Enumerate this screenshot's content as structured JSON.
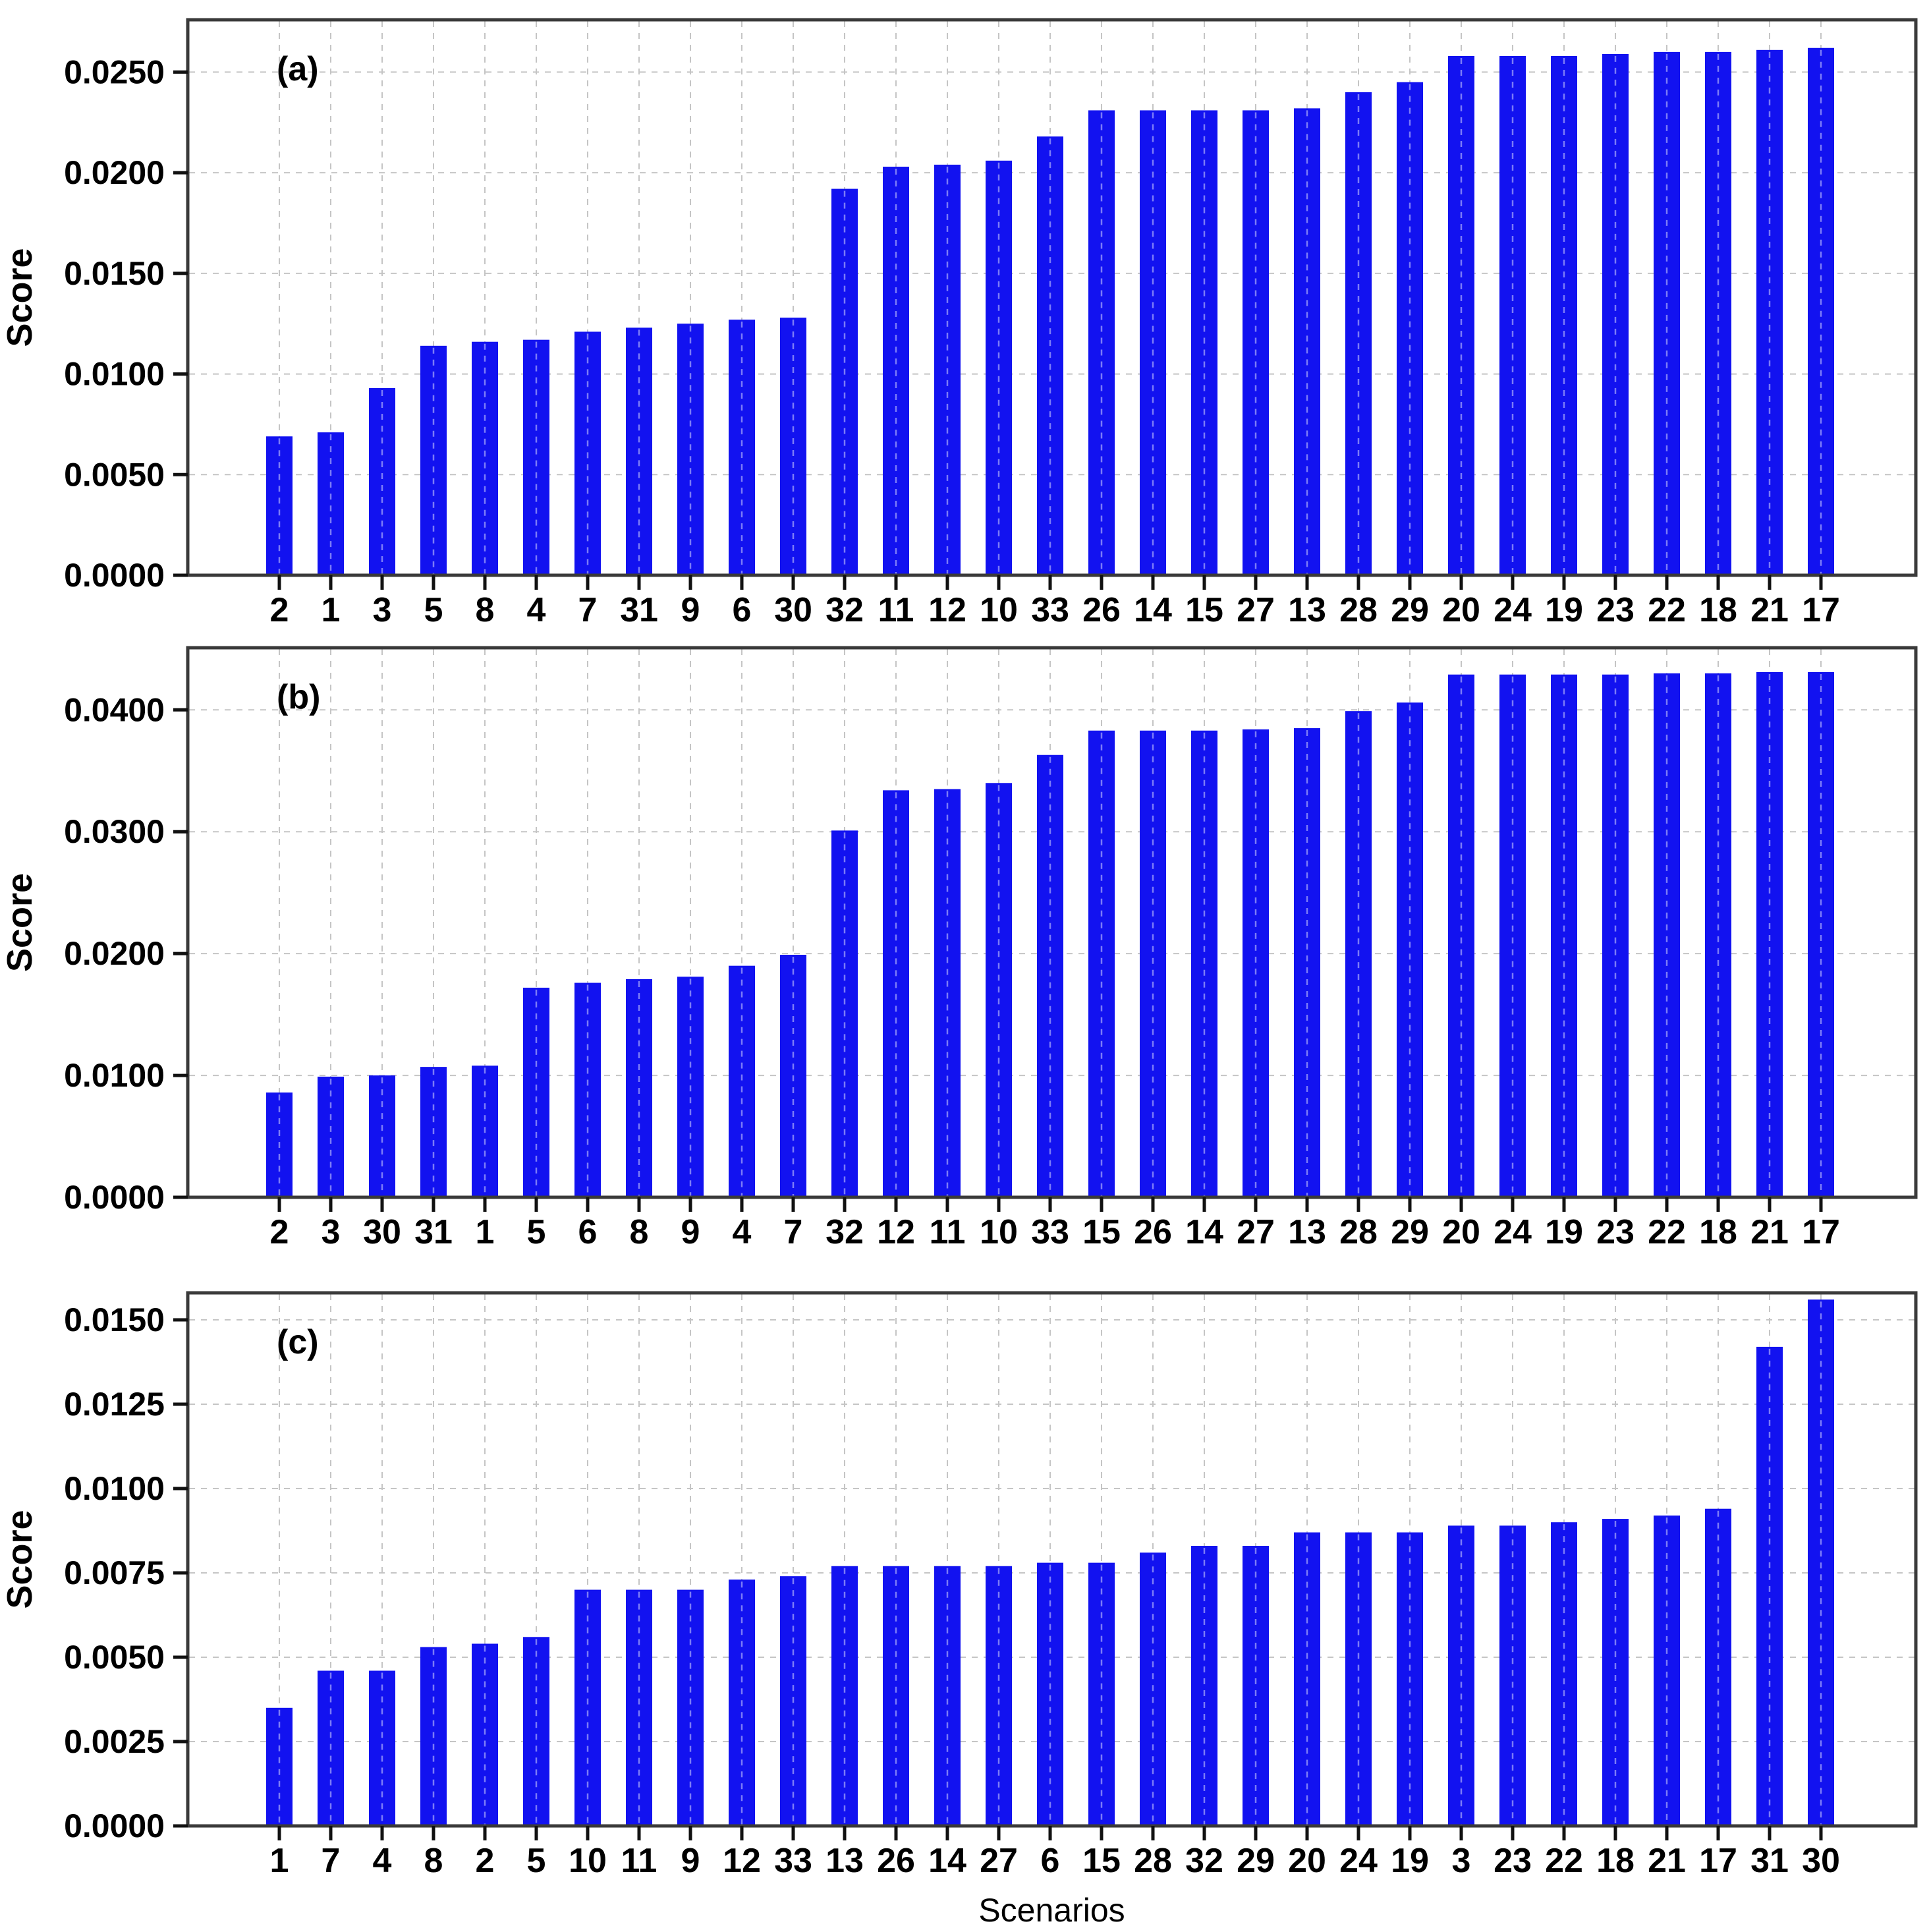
{
  "figure": {
    "xlabel": "Scenarios",
    "ylabel": "Score",
    "bar_color": "#1212f0",
    "grid_color": "#c5c5c5",
    "frame_color": "#3a3a3a",
    "tick_color": "#111111",
    "text_color": "#000000",
    "background": "#ffffff"
  },
  "chart_data": [
    {
      "type": "bar",
      "panel_label": "(a)",
      "ylabel": "Score",
      "xlabel": "",
      "grid": true,
      "legend_position": "none",
      "ylim": [
        0,
        0.0276
      ],
      "yticks": [
        0.0,
        0.005,
        0.01,
        0.015,
        0.02,
        0.025
      ],
      "ytick_labels": [
        "0.0000",
        "0.0050",
        "0.0100",
        "0.0150",
        "0.0200",
        "0.0250"
      ],
      "categories": [
        "2",
        "1",
        "3",
        "5",
        "8",
        "4",
        "7",
        "31",
        "9",
        "6",
        "30",
        "32",
        "11",
        "12",
        "10",
        "33",
        "26",
        "14",
        "15",
        "27",
        "13",
        "28",
        "29",
        "20",
        "24",
        "19",
        "23",
        "22",
        "18",
        "21",
        "17"
      ],
      "values": [
        0.0069,
        0.0071,
        0.0093,
        0.0114,
        0.0116,
        0.0117,
        0.0121,
        0.0123,
        0.0125,
        0.0127,
        0.0128,
        0.0192,
        0.0203,
        0.0204,
        0.0206,
        0.0218,
        0.0231,
        0.0231,
        0.0231,
        0.0231,
        0.0232,
        0.024,
        0.0245,
        0.0258,
        0.0258,
        0.0258,
        0.0259,
        0.026,
        0.026,
        0.0261,
        0.0262
      ]
    },
    {
      "type": "bar",
      "panel_label": "(b)",
      "ylabel": "Score",
      "xlabel": "",
      "grid": true,
      "legend_position": "none",
      "ylim": [
        0,
        0.0451
      ],
      "yticks": [
        0.0,
        0.01,
        0.02,
        0.03,
        0.04
      ],
      "ytick_labels": [
        "0.0000",
        "0.0100",
        "0.0200",
        "0.0300",
        "0.0400"
      ],
      "categories": [
        "2",
        "3",
        "30",
        "31",
        "1",
        "5",
        "6",
        "8",
        "9",
        "4",
        "7",
        "32",
        "12",
        "11",
        "10",
        "33",
        "15",
        "26",
        "14",
        "27",
        "13",
        "28",
        "29",
        "20",
        "24",
        "19",
        "23",
        "22",
        "18",
        "21",
        "17"
      ],
      "values": [
        0.0086,
        0.0099,
        0.01,
        0.0107,
        0.0108,
        0.0172,
        0.0176,
        0.0179,
        0.0181,
        0.019,
        0.0199,
        0.0301,
        0.0334,
        0.0335,
        0.034,
        0.0363,
        0.0383,
        0.0383,
        0.0383,
        0.0384,
        0.0385,
        0.0399,
        0.0406,
        0.0429,
        0.0429,
        0.0429,
        0.0429,
        0.043,
        0.043,
        0.0431,
        0.0431
      ]
    },
    {
      "type": "bar",
      "panel_label": "(c)",
      "ylabel": "Score",
      "xlabel": "Scenarios",
      "grid": true,
      "legend_position": "none",
      "ylim": [
        0,
        0.0158
      ],
      "yticks": [
        0.0,
        0.0025,
        0.005,
        0.0075,
        0.01,
        0.0125,
        0.015
      ],
      "ytick_labels": [
        "0.0000",
        "0.0025",
        "0.0050",
        "0.0075",
        "0.0100",
        "0.0125",
        "0.0150"
      ],
      "categories": [
        "1",
        "7",
        "4",
        "8",
        "2",
        "5",
        "10",
        "11",
        "9",
        "12",
        "33",
        "13",
        "26",
        "14",
        "27",
        "6",
        "15",
        "28",
        "32",
        "29",
        "20",
        "24",
        "19",
        "3",
        "23",
        "22",
        "18",
        "21",
        "17",
        "31",
        "30"
      ],
      "values": [
        0.0035,
        0.0046,
        0.0046,
        0.0053,
        0.0054,
        0.0056,
        0.007,
        0.007,
        0.007,
        0.0073,
        0.0074,
        0.0077,
        0.0077,
        0.0077,
        0.0077,
        0.0078,
        0.0078,
        0.0081,
        0.0083,
        0.0083,
        0.0087,
        0.0087,
        0.0087,
        0.0089,
        0.0089,
        0.009,
        0.0091,
        0.0092,
        0.0094,
        0.0142,
        0.0156
      ]
    }
  ]
}
